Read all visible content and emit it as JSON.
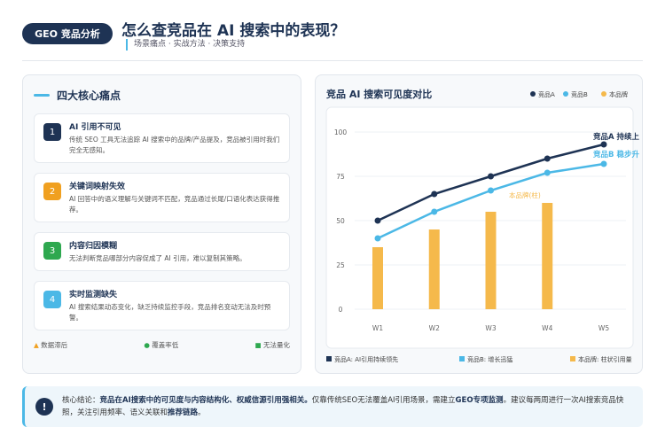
{
  "header": {
    "badge": "GEO 竞品分析",
    "title": "怎么查竞品在 AI 搜索中的表现？",
    "subtitle": "场景痛点 · 实战方法 · 决策支持"
  },
  "pain_points": {
    "title": "四大核心痛点",
    "items": [
      {
        "number": "1",
        "color": "#1e3354",
        "title": "AI 引用不可见",
        "text": "传统 SEO 工具无法追踪 AI 搜索中的品牌/产品提及，竞品被引用时我们完全无感知。"
      },
      {
        "number": "2",
        "color": "#f0a020",
        "title": "关键词映射失效",
        "text": "AI 回答中的语义理解与关键词不匹配，竞品通过长尾/口语化表达获得推荐。"
      },
      {
        "number": "3",
        "color": "#2ea84f",
        "title": "内容归因模糊",
        "text": "无法判断竞品哪部分内容促成了 AI 引用，难以复制其策略。"
      },
      {
        "number": "4",
        "color": "#4bb8e6",
        "title": "实时监测缺失",
        "text": "AI 搜索结果动态变化，缺乏持续监控手段，竞品排名变动无法及时预警。"
      }
    ],
    "tags": [
      "数据滞后",
      "覆盖率低",
      "无法量化"
    ]
  },
  "chart_data": {
    "type": "line",
    "title": "竞品 AI 搜索可见度对比",
    "categories": [
      "W1",
      "W2",
      "W3",
      "W4",
      "W5"
    ],
    "series": [
      {
        "name": "竞品A",
        "color": "#1e3354",
        "type": "line",
        "values": [
          50,
          65,
          75,
          85,
          93
        ]
      },
      {
        "name": "竞品B",
        "color": "#4bb8e6",
        "type": "line",
        "values": [
          40,
          55,
          67,
          77,
          82
        ]
      },
      {
        "name": "本品牌",
        "color": "#f5b94b",
        "type": "bar",
        "values": [
          35,
          45,
          55,
          60,
          null
        ]
      }
    ],
    "ylim": [
      0,
      100
    ],
    "yticks": [
      0,
      25,
      50,
      75,
      100
    ],
    "grid": true,
    "annotations": [
      "竞品A 持续上",
      "竞品B 稳步升",
      "本品牌(柱)"
    ],
    "notes": [
      "竞品A: AI引用持续领先",
      "竞品B: 增长迅猛",
      "本品牌: 柱状引用量"
    ]
  },
  "conclusion": {
    "segments": [
      {
        "text": "核心结论：",
        "bold": false
      },
      {
        "text": "竞品在AI搜索中的可见度与内容结构化、权威信源引用强相关。",
        "bold": true
      },
      {
        "text": "仅靠传统SEO无法覆盖AI引用场景，需建立",
        "bold": false
      },
      {
        "text": "GEO专项监测",
        "bold": true
      },
      {
        "text": "。建议每两周进行一次AI搜索竞品快照，关注引用频率、语义关联和",
        "bold": false
      },
      {
        "text": "推荐链路",
        "bold": true
      },
      {
        "text": "。",
        "bold": false
      }
    ]
  }
}
